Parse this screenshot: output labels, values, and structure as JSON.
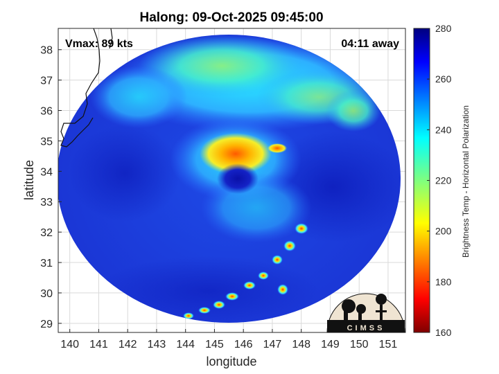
{
  "title": "Halong: 09-Oct-2025 09:45:00",
  "annotations": {
    "vmax": "Vmax: 89 kts",
    "away": "04:11 away"
  },
  "axes": {
    "xlabel": "longitude",
    "ylabel": "latitude",
    "xlim": [
      139.6,
      151.6
    ],
    "ylim": [
      28.7,
      38.7
    ],
    "xticks": [
      140,
      141,
      142,
      143,
      144,
      145,
      146,
      147,
      148,
      149,
      150,
      151
    ],
    "yticks": [
      29,
      30,
      31,
      32,
      33,
      34,
      35,
      36,
      37,
      38
    ],
    "grid": true
  },
  "colorbar": {
    "label": "Brightness Temp - Horizontal Polarization",
    "min": 160,
    "max": 280,
    "ticks": [
      160,
      180,
      200,
      220,
      240,
      260,
      280
    ],
    "colormap": "jet"
  },
  "logo": {
    "text": "CIMSS"
  },
  "storm": {
    "center_lon": 146.0,
    "center_lat": 33.8,
    "swath_center_lon": 146.1,
    "swath_center_lat": 33.9
  },
  "colors": {
    "background_scan": "#1f3fd8",
    "deep_blue": "#0a16b8",
    "frame": "#262626",
    "grid": "#d9d9d9",
    "logo_bg": "#efe4d2",
    "logo_fg": "#111111"
  }
}
